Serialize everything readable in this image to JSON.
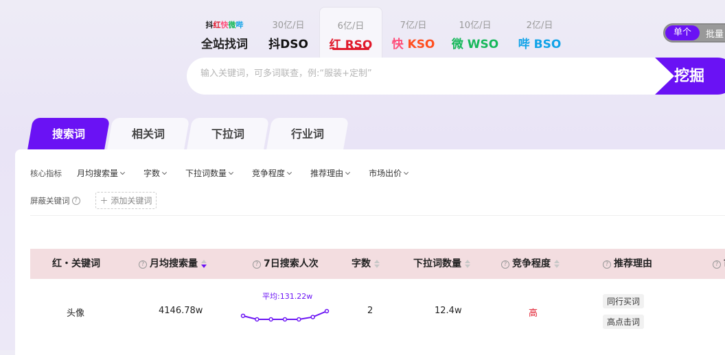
{
  "sources": [
    {
      "sub_logo": "抖红快微哔",
      "name": "全站找词",
      "color": "#111111"
    },
    {
      "sub": "30亿/日",
      "icon": "抖",
      "name": "DSO",
      "color": "#111111"
    },
    {
      "sub": "6亿/日",
      "icon": "红",
      "name": "RSO",
      "color": "#e0192b",
      "active": true
    },
    {
      "sub": "7亿/日",
      "icon": "快",
      "name": "KSO",
      "color": "#ff4e1f"
    },
    {
      "sub": "10亿/日",
      "icon": "微",
      "name": "WSO",
      "color": "#16b85a"
    },
    {
      "sub": "2亿/日",
      "icon": "哔",
      "name": "BSO",
      "color": "#10a3e8"
    }
  ],
  "mode_toggle": {
    "single": "单个",
    "batch": "批量"
  },
  "search": {
    "placeholder": "输入关键词，可多词联查，例:“服装+定制”",
    "button": "挖掘"
  },
  "tabs": [
    "搜索词",
    "相关词",
    "下拉词",
    "行业词"
  ],
  "filters": {
    "label": "核心指标",
    "items": [
      "月均搜索量",
      "字数",
      "下拉词数量",
      "竞争程度",
      "推荐理由",
      "市场出价"
    ],
    "block_label": "屏蔽关键词",
    "add_keyword": "添加关键词"
  },
  "table": {
    "headers": [
      "红・关键词",
      "月均搜索量",
      "7日搜索人次",
      "字数",
      "下拉词数量",
      "竞争程度",
      "推荐理由",
      "市"
    ],
    "rows": [
      {
        "keyword": "头像",
        "monthly": "4146.78w",
        "avg_label": "平均:131.22w",
        "trend": [
          130,
          127,
          127,
          127,
          127,
          129,
          134
        ],
        "chars": "2",
        "dropdown": "12.4w",
        "competition": "高",
        "reasons": [
          "同行买词",
          "高点击词"
        ]
      }
    ]
  },
  "colors": {
    "accent": "#6a12f4",
    "competition_high": "#e0192b",
    "header_bg": "#f3dde0"
  }
}
